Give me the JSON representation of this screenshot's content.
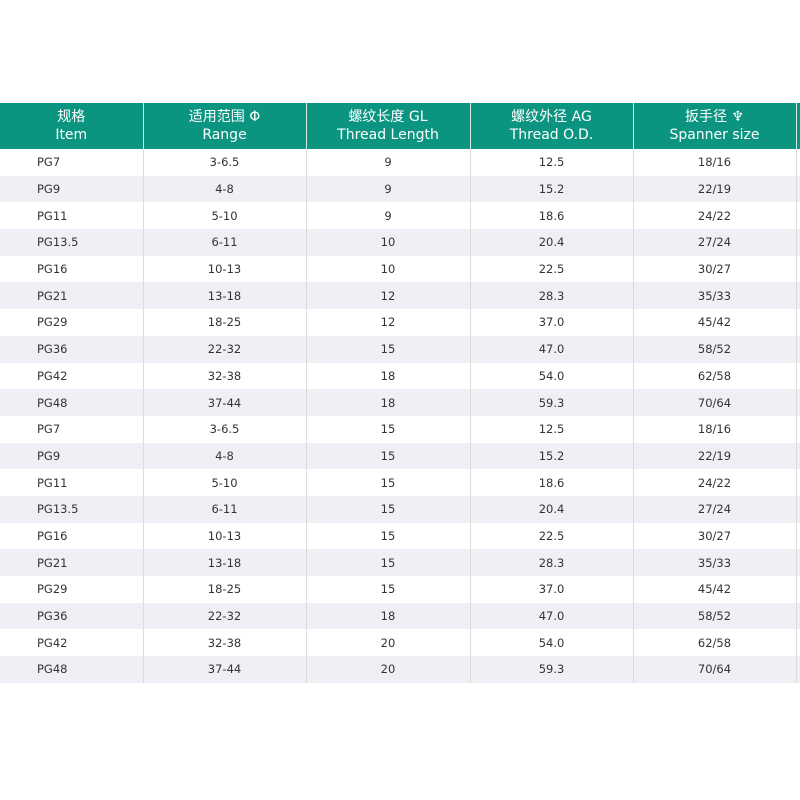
{
  "header": [
    {
      "zh": "规格",
      "en": "Item"
    },
    {
      "zh": "适用范围 Φ",
      "en": "Range"
    },
    {
      "zh": "螺纹长度 GL",
      "en": "Thread Length"
    },
    {
      "zh": "螺纹外径 AG",
      "en": "Thread O.D."
    },
    {
      "zh": "扳手径 ♆",
      "en": "Spanner size"
    }
  ],
  "rows": [
    [
      "PG7",
      "3-6.5",
      "9",
      "12.5",
      "18/16"
    ],
    [
      "PG9",
      "4-8",
      "9",
      "15.2",
      "22/19"
    ],
    [
      "PG11",
      "5-10",
      "9",
      "18.6",
      "24/22"
    ],
    [
      "PG13.5",
      "6-11",
      "10",
      "20.4",
      "27/24"
    ],
    [
      "PG16",
      "10-13",
      "10",
      "22.5",
      "30/27"
    ],
    [
      "PG21",
      "13-18",
      "12",
      "28.3",
      "35/33"
    ],
    [
      "PG29",
      "18-25",
      "12",
      "37.0",
      "45/42"
    ],
    [
      "PG36",
      "22-32",
      "15",
      "47.0",
      "58/52"
    ],
    [
      "PG42",
      "32-38",
      "18",
      "54.0",
      "62/58"
    ],
    [
      "PG48",
      "37-44",
      "18",
      "59.3",
      "70/64"
    ],
    [
      "PG7",
      "3-6.5",
      "15",
      "12.5",
      "18/16"
    ],
    [
      "PG9",
      "4-8",
      "15",
      "15.2",
      "22/19"
    ],
    [
      "PG11",
      "5-10",
      "15",
      "18.6",
      "24/22"
    ],
    [
      "PG13.5",
      "6-11",
      "15",
      "20.4",
      "27/24"
    ],
    [
      "PG16",
      "10-13",
      "15",
      "22.5",
      "30/27"
    ],
    [
      "PG21",
      "13-18",
      "15",
      "28.3",
      "35/33"
    ],
    [
      "PG29",
      "18-25",
      "15",
      "37.0",
      "45/42"
    ],
    [
      "PG36",
      "22-32",
      "18",
      "47.0",
      "58/52"
    ],
    [
      "PG42",
      "32-38",
      "20",
      "54.0",
      "62/58"
    ],
    [
      "PG48",
      "37-44",
      "20",
      "59.3",
      "70/64"
    ]
  ],
  "colors": {
    "header_bg": "#0b9580",
    "alt_row": "#eef0f5"
  }
}
